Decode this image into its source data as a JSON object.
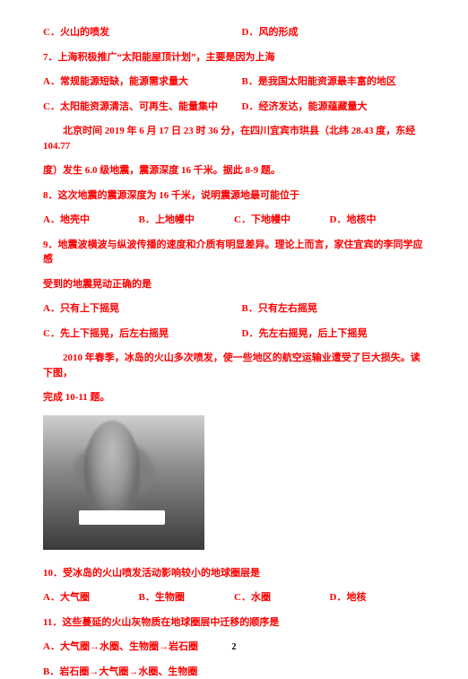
{
  "q6_opts": {
    "c": "C．火山的喷发",
    "d": "D．风的形成"
  },
  "q7": {
    "stem": "7．上海积极推广“太阳能屋顶计划”，主要是因为上海",
    "a": "A．常规能源短缺，能源需求量大",
    "b": "B．是我国太阳能资源最丰富的地区",
    "c": "C．太阳能资源清洁、可再生、能量集中",
    "d": "D．经济发达，能源蕴藏量大"
  },
  "passage89_l1": "北京时间 2019 年 6 月 17 日 23 时 36 分，在四川宜宾市珙县（北纬 28.43 度，东经 104.77",
  "passage89_l2": "度）发生 6.0 级地震，震源深度 16 千米。据此 8-9 题。",
  "q8": {
    "stem": "8．这次地震的震源深度为 16 千米，说明震源地最可能位于",
    "a": "A．地壳中",
    "b": "B．上地幔中",
    "c": "C．下地幔中",
    "d": "D．地核中"
  },
  "q9": {
    "stem_l1": "9．地震波横波与纵波传播的速度和介质有明显差异。理论上而言，家住宜宾的李同学应感",
    "stem_l2": "受到的地震晃动正确的是",
    "a": "A．只有上下摇晃",
    "b": "B．只有左右摇晃",
    "c": "C．先上下摇晃，后左右摇晃",
    "d": "D．先左右摇晃，后上下摇晃"
  },
  "passage1011_l1": "2010 年春季，冰岛的火山多次喷发，使一些地区的航空运输业遭受了巨大损失。读下图，",
  "passage1011_l2": "完成 10-11 题。",
  "q10": {
    "stem": "10．受冰岛的火山喷发活动影响较小的地球圈层是",
    "a": "A．大气圈",
    "b": "B．生物圈",
    "c": "C．水圈",
    "d": "D．地核"
  },
  "q11": {
    "stem": "11．这些蔓延的火山灰物质在地球圈层中迁移的顺序是",
    "a": "A．大气圈→水圈、生物圈→岩石圈",
    "b": "B．岩石圈→大气圈→水圈、生物圈"
  },
  "pagenum": "2"
}
